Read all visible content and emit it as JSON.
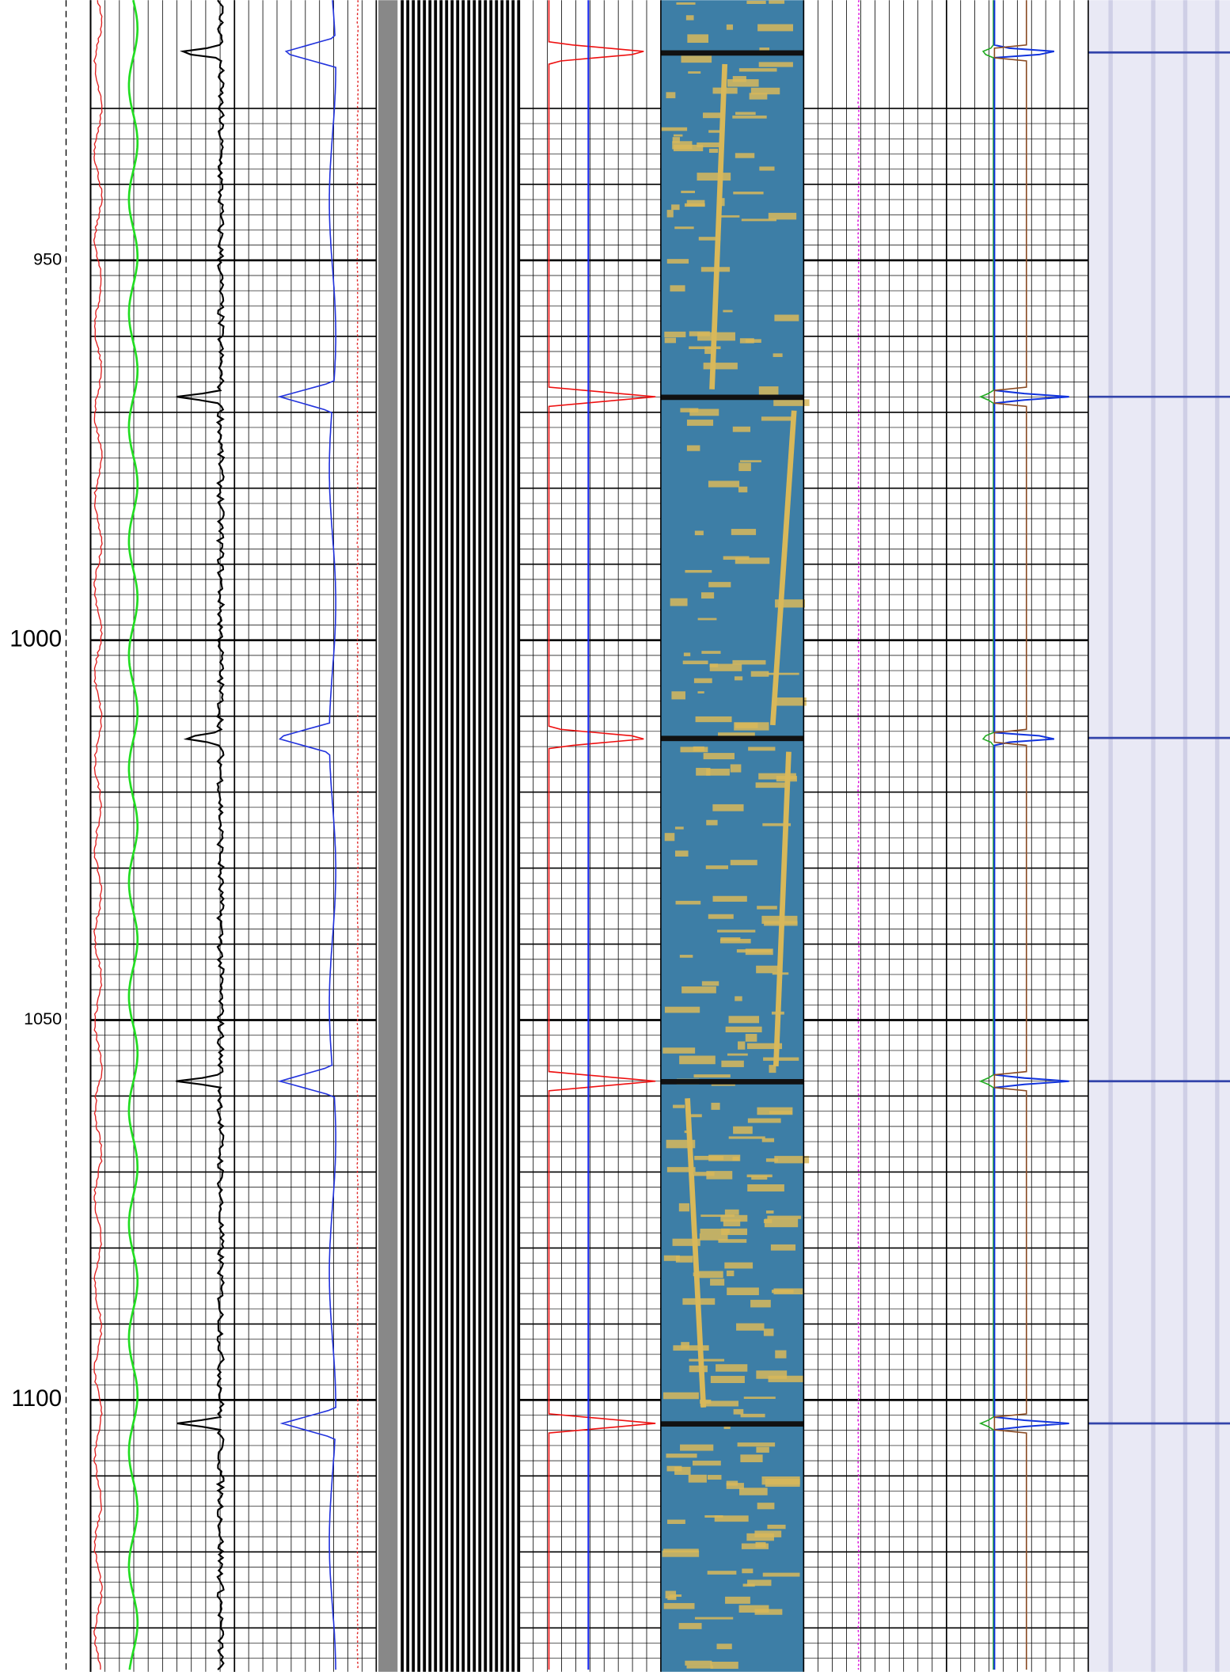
{
  "depth_track": {
    "labels": [
      950,
      1000,
      1050,
      1100
    ]
  }
}
